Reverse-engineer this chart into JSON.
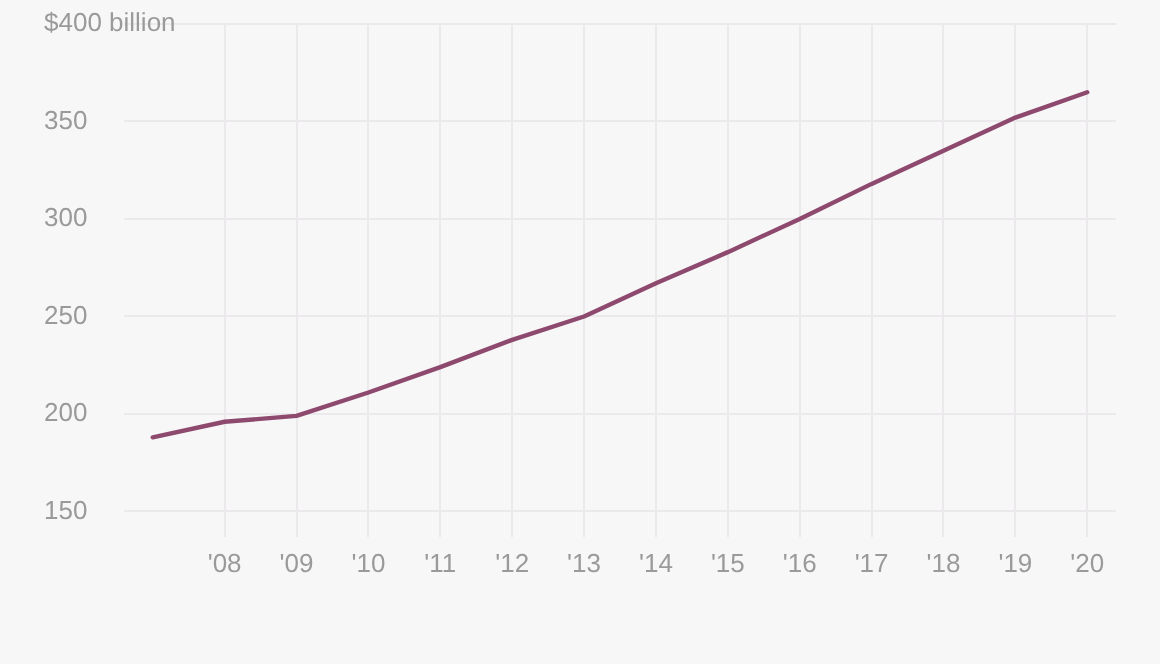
{
  "chart_data": {
    "type": "line",
    "x": [
      2007,
      2008,
      2009,
      2010,
      2011,
      2012,
      2013,
      2014,
      2015,
      2016,
      2017,
      2018,
      2019,
      2020
    ],
    "series": [
      {
        "color": "#8e4a6e",
        "values": [
          188,
          196,
          199,
          211,
          224,
          238,
          250,
          267,
          283,
          300,
          318,
          335,
          352,
          365
        ]
      }
    ],
    "xlim": [
      2006.6,
      2020.4
    ],
    "xticks": [
      {
        "value": 2008,
        "label": "'08"
      },
      {
        "value": 2009,
        "label": "'09"
      },
      {
        "value": 2010,
        "label": "'10"
      },
      {
        "value": 2011,
        "label": "'11"
      },
      {
        "value": 2012,
        "label": "'12"
      },
      {
        "value": 2013,
        "label": "'13"
      },
      {
        "value": 2014,
        "label": "'14"
      },
      {
        "value": 2015,
        "label": "'15"
      },
      {
        "value": 2016,
        "label": "'16"
      },
      {
        "value": 2017,
        "label": "'17"
      },
      {
        "value": 2018,
        "label": "'18"
      },
      {
        "value": 2019,
        "label": "'19"
      },
      {
        "value": 2020,
        "label": "'20"
      }
    ],
    "ylim": [
      137,
      400
    ],
    "yticks": [
      150,
      200,
      250,
      300,
      350,
      {
        "value": 400,
        "label": "$400 billion"
      }
    ],
    "grid": true,
    "legend": false,
    "marker": "none",
    "line_style": "solid"
  }
}
